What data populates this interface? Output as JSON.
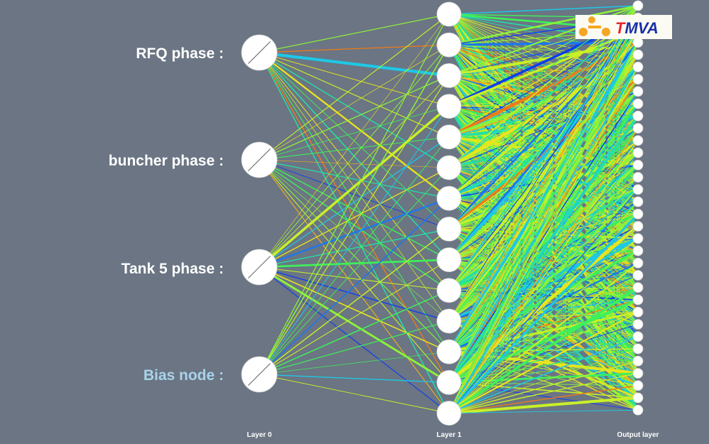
{
  "input_labels": [
    "RFQ phase :",
    "buncher phase :",
    "Tank 5 phase :"
  ],
  "bias_label": "Bias node :",
  "layer_labels": [
    "Layer 0",
    "Layer 1",
    "Output layer"
  ],
  "logo": {
    "first_letter": "T",
    "rest": "MVA"
  },
  "network": {
    "input_nodes": 4,
    "hidden_nodes": 14,
    "output_nodes": 34
  },
  "colors": {
    "background": "#6b7583",
    "node_fill": "#ffffff",
    "bias_label": "#a9d3ea",
    "logo_bg": "#fbfbf3",
    "logo_red": "#e8262a",
    "logo_blue": "#1a2fa8",
    "logo_orange": "#f5a623",
    "weight_palette": [
      "#0a3df0",
      "#1a78f0",
      "#1ec8e6",
      "#22e0a8",
      "#3ef05a",
      "#8cf23a",
      "#c8f028",
      "#e8e41e",
      "#f0b01c",
      "#f07a18"
    ]
  }
}
